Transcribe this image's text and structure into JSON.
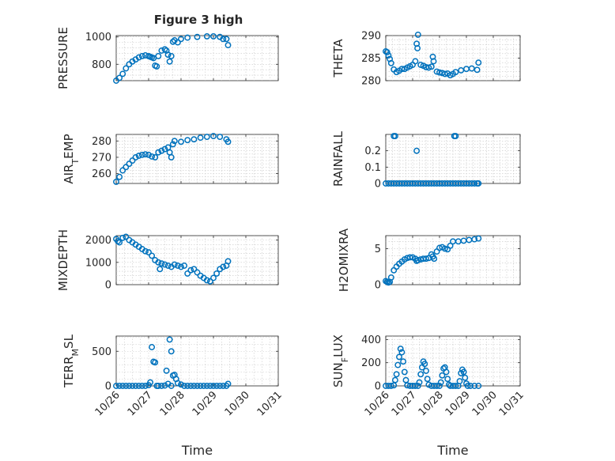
{
  "figure": {
    "title": "Figure 3 high"
  },
  "chart_data": [
    {
      "type": "scatter",
      "ylabel_main": "PRESSURE",
      "ylabel_sub": "",
      "xlabel": "",
      "yticks": [
        800,
        1000
      ],
      "ylim": [
        680,
        1010
      ],
      "minor_grid": true,
      "points": [
        [
          0.0,
          680
        ],
        [
          0.1,
          700
        ],
        [
          0.2,
          730
        ],
        [
          0.3,
          770
        ],
        [
          0.4,
          800
        ],
        [
          0.5,
          820
        ],
        [
          0.6,
          835
        ],
        [
          0.7,
          850
        ],
        [
          0.8,
          860
        ],
        [
          0.9,
          865
        ],
        [
          1.0,
          860
        ],
        [
          1.05,
          855
        ],
        [
          1.1,
          850
        ],
        [
          1.15,
          845
        ],
        [
          1.2,
          790
        ],
        [
          1.25,
          785
        ],
        [
          1.3,
          860
        ],
        [
          1.4,
          900
        ],
        [
          1.5,
          910
        ],
        [
          1.55,
          900
        ],
        [
          1.6,
          870
        ],
        [
          1.65,
          820
        ],
        [
          1.7,
          860
        ],
        [
          1.75,
          965
        ],
        [
          1.8,
          975
        ],
        [
          1.9,
          960
        ],
        [
          2.0,
          985
        ],
        [
          2.2,
          995
        ],
        [
          2.5,
          1000
        ],
        [
          2.8,
          1005
        ],
        [
          3.0,
          1005
        ],
        [
          3.2,
          1000
        ],
        [
          3.3,
          985
        ],
        [
          3.4,
          985
        ],
        [
          3.45,
          940
        ]
      ]
    },
    {
      "type": "scatter",
      "ylabel_main": "THETA",
      "ylabel_sub": "",
      "xlabel": "",
      "yticks": [
        280,
        285,
        290
      ],
      "ylim": [
        280,
        290
      ],
      "minor_grid": true,
      "points": [
        [
          0.0,
          286.5
        ],
        [
          0.05,
          286.3
        ],
        [
          0.1,
          285.6
        ],
        [
          0.15,
          284.8
        ],
        [
          0.2,
          283.9
        ],
        [
          0.3,
          282.5
        ],
        [
          0.4,
          281.9
        ],
        [
          0.5,
          282.2
        ],
        [
          0.6,
          282.6
        ],
        [
          0.7,
          282.6
        ],
        [
          0.8,
          282.9
        ],
        [
          0.9,
          283.2
        ],
        [
          1.0,
          283.5
        ],
        [
          1.1,
          284.3
        ],
        [
          1.15,
          288.2
        ],
        [
          1.18,
          287.2
        ],
        [
          1.2,
          290.2
        ],
        [
          1.3,
          283.5
        ],
        [
          1.4,
          283.3
        ],
        [
          1.5,
          283.0
        ],
        [
          1.6,
          282.9
        ],
        [
          1.7,
          283.1
        ],
        [
          1.75,
          285.3
        ],
        [
          1.78,
          284.3
        ],
        [
          1.9,
          282.0
        ],
        [
          2.0,
          281.8
        ],
        [
          2.1,
          281.7
        ],
        [
          2.2,
          281.5
        ],
        [
          2.3,
          281.6
        ],
        [
          2.4,
          281.2
        ],
        [
          2.5,
          281.5
        ],
        [
          2.6,
          281.9
        ],
        [
          2.8,
          282.3
        ],
        [
          3.0,
          282.6
        ],
        [
          3.2,
          282.7
        ],
        [
          3.4,
          282.4
        ],
        [
          3.45,
          284.0
        ]
      ]
    },
    {
      "type": "scatter",
      "ylabel_main": "AIR",
      "ylabel_sub": "T",
      "ylabel_tail": "EMP",
      "xlabel": "",
      "yticks": [
        260,
        270,
        280
      ],
      "ylim": [
        254,
        284
      ],
      "minor_grid": true,
      "points": [
        [
          0.0,
          255
        ],
        [
          0.1,
          258
        ],
        [
          0.2,
          262
        ],
        [
          0.3,
          264
        ],
        [
          0.4,
          266
        ],
        [
          0.5,
          268
        ],
        [
          0.6,
          270
        ],
        [
          0.7,
          271
        ],
        [
          0.8,
          271.5
        ],
        [
          0.9,
          271.8
        ],
        [
          1.0,
          271.5
        ],
        [
          1.1,
          270.5
        ],
        [
          1.2,
          270
        ],
        [
          1.3,
          273
        ],
        [
          1.4,
          274
        ],
        [
          1.5,
          275
        ],
        [
          1.6,
          276
        ],
        [
          1.65,
          273
        ],
        [
          1.7,
          270
        ],
        [
          1.75,
          278
        ],
        [
          1.8,
          280
        ],
        [
          2.0,
          279.5
        ],
        [
          2.2,
          280.5
        ],
        [
          2.4,
          281
        ],
        [
          2.6,
          282
        ],
        [
          2.8,
          282.5
        ],
        [
          3.0,
          283
        ],
        [
          3.2,
          282.5
        ],
        [
          3.4,
          281
        ],
        [
          3.45,
          279.5
        ]
      ]
    },
    {
      "type": "scatter",
      "ylabel_main": "RAINFALL",
      "ylabel_sub": "",
      "xlabel": "",
      "yticks": [
        0,
        0.1,
        0.2
      ],
      "ylim": [
        0,
        0.3
      ],
      "minor_grid": true,
      "points": [
        [
          0.0,
          0
        ],
        [
          0.1,
          0
        ],
        [
          0.2,
          0
        ],
        [
          0.3,
          0
        ],
        [
          0.4,
          0
        ],
        [
          0.5,
          0
        ],
        [
          0.6,
          0
        ],
        [
          0.7,
          0
        ],
        [
          0.8,
          0
        ],
        [
          0.9,
          0
        ],
        [
          1.0,
          0
        ],
        [
          1.1,
          0
        ],
        [
          1.2,
          0
        ],
        [
          1.3,
          0
        ],
        [
          1.4,
          0
        ],
        [
          1.5,
          0
        ],
        [
          1.6,
          0
        ],
        [
          1.7,
          0
        ],
        [
          1.8,
          0
        ],
        [
          1.9,
          0
        ],
        [
          2.0,
          0
        ],
        [
          2.1,
          0
        ],
        [
          2.2,
          0
        ],
        [
          2.3,
          0
        ],
        [
          2.4,
          0
        ],
        [
          2.5,
          0
        ],
        [
          2.6,
          0
        ],
        [
          2.7,
          0
        ],
        [
          2.8,
          0
        ],
        [
          2.9,
          0
        ],
        [
          3.0,
          0
        ],
        [
          3.1,
          0
        ],
        [
          3.2,
          0
        ],
        [
          3.3,
          0
        ],
        [
          3.4,
          0
        ],
        [
          3.45,
          0
        ],
        [
          0.3,
          0.29
        ],
        [
          0.35,
          0.29
        ],
        [
          1.15,
          0.2
        ],
        [
          2.55,
          0.29
        ],
        [
          2.6,
          0.29
        ]
      ]
    },
    {
      "type": "scatter",
      "ylabel_main": "MIXDEPTH",
      "ylabel_sub": "",
      "xlabel": "",
      "yticks": [
        0,
        1000,
        2000
      ],
      "ylim": [
        0,
        2200
      ],
      "minor_grid": true,
      "points": [
        [
          0.0,
          2050
        ],
        [
          0.05,
          1950
        ],
        [
          0.1,
          1900
        ],
        [
          0.2,
          2100
        ],
        [
          0.3,
          2150
        ],
        [
          0.4,
          2000
        ],
        [
          0.5,
          1900
        ],
        [
          0.6,
          1800
        ],
        [
          0.7,
          1700
        ],
        [
          0.8,
          1600
        ],
        [
          0.9,
          1500
        ],
        [
          1.0,
          1450
        ],
        [
          1.1,
          1300
        ],
        [
          1.2,
          1100
        ],
        [
          1.3,
          1000
        ],
        [
          1.35,
          700
        ],
        [
          1.4,
          950
        ],
        [
          1.5,
          900
        ],
        [
          1.6,
          850
        ],
        [
          1.7,
          800
        ],
        [
          1.8,
          900
        ],
        [
          1.9,
          850
        ],
        [
          2.0,
          800
        ],
        [
          2.1,
          850
        ],
        [
          2.2,
          500
        ],
        [
          2.3,
          650
        ],
        [
          2.4,
          700
        ],
        [
          2.5,
          550
        ],
        [
          2.6,
          400
        ],
        [
          2.7,
          300
        ],
        [
          2.8,
          200
        ],
        [
          2.9,
          150
        ],
        [
          3.0,
          300
        ],
        [
          3.1,
          500
        ],
        [
          3.2,
          700
        ],
        [
          3.3,
          800
        ],
        [
          3.4,
          850
        ],
        [
          3.45,
          1050
        ]
      ]
    },
    {
      "type": "scatter",
      "ylabel_main": "H2OMIXRA",
      "ylabel_sub": "",
      "xlabel": "",
      "yticks": [
        0,
        5
      ],
      "ylim": [
        0,
        6.8
      ],
      "minor_grid": true,
      "points": [
        [
          0.0,
          0.5
        ],
        [
          0.05,
          0.4
        ],
        [
          0.1,
          0.3
        ],
        [
          0.15,
          0.4
        ],
        [
          0.2,
          1.0
        ],
        [
          0.3,
          2.0
        ],
        [
          0.4,
          2.5
        ],
        [
          0.5,
          2.9
        ],
        [
          0.6,
          3.2
        ],
        [
          0.7,
          3.5
        ],
        [
          0.8,
          3.7
        ],
        [
          0.9,
          3.8
        ],
        [
          1.0,
          3.8
        ],
        [
          1.1,
          3.6
        ],
        [
          1.15,
          3.3
        ],
        [
          1.2,
          3.4
        ],
        [
          1.3,
          3.5
        ],
        [
          1.4,
          3.6
        ],
        [
          1.5,
          3.6
        ],
        [
          1.6,
          3.7
        ],
        [
          1.7,
          4.2
        ],
        [
          1.75,
          3.9
        ],
        [
          1.8,
          3.6
        ],
        [
          1.9,
          4.6
        ],
        [
          2.0,
          5.1
        ],
        [
          2.1,
          5.2
        ],
        [
          2.2,
          5.0
        ],
        [
          2.3,
          4.9
        ],
        [
          2.4,
          5.4
        ],
        [
          2.5,
          6.0
        ],
        [
          2.7,
          6.0
        ],
        [
          2.9,
          6.1
        ],
        [
          3.1,
          6.2
        ],
        [
          3.3,
          6.3
        ],
        [
          3.45,
          6.4
        ]
      ]
    },
    {
      "type": "scatter",
      "ylabel_main": "TERR",
      "ylabel_sub": "M",
      "ylabel_tail": "SL",
      "xlabel": "Time",
      "yticks": [
        0,
        500
      ],
      "ylim": [
        0,
        720
      ],
      "minor_grid": true,
      "points": [
        [
          0.0,
          0
        ],
        [
          0.1,
          0
        ],
        [
          0.2,
          0
        ],
        [
          0.3,
          0
        ],
        [
          0.4,
          0
        ],
        [
          0.5,
          0
        ],
        [
          0.6,
          0
        ],
        [
          0.7,
          0
        ],
        [
          0.8,
          0
        ],
        [
          0.9,
          0
        ],
        [
          1.0,
          10
        ],
        [
          1.05,
          50
        ],
        [
          1.1,
          560
        ],
        [
          1.15,
          350
        ],
        [
          1.2,
          340
        ],
        [
          1.25,
          0
        ],
        [
          1.3,
          0
        ],
        [
          1.4,
          0
        ],
        [
          1.5,
          5
        ],
        [
          1.6,
          30
        ],
        [
          1.65,
          670
        ],
        [
          1.7,
          500
        ],
        [
          1.75,
          150
        ],
        [
          1.8,
          160
        ],
        [
          1.85,
          100
        ],
        [
          1.9,
          40
        ],
        [
          2.0,
          20
        ],
        [
          2.1,
          0
        ],
        [
          2.2,
          0
        ],
        [
          2.3,
          0
        ],
        [
          2.4,
          0
        ],
        [
          2.5,
          0
        ],
        [
          2.6,
          0
        ],
        [
          2.7,
          0
        ],
        [
          2.8,
          0
        ],
        [
          2.9,
          0
        ],
        [
          3.0,
          0
        ],
        [
          3.1,
          0
        ],
        [
          3.2,
          0
        ],
        [
          3.3,
          0
        ],
        [
          3.4,
          0
        ],
        [
          3.45,
          30
        ],
        [
          1.55,
          220
        ],
        [
          1.7,
          0
        ]
      ]
    },
    {
      "type": "scatter",
      "ylabel_main": "SUN",
      "ylabel_sub": "F",
      "ylabel_tail": "LUX",
      "xlabel": "Time",
      "yticks": [
        0,
        200,
        400
      ],
      "ylim": [
        0,
        430
      ],
      "minor_grid": true,
      "points": [
        [
          0.0,
          0
        ],
        [
          0.1,
          0
        ],
        [
          0.2,
          0
        ],
        [
          0.3,
          5
        ],
        [
          0.35,
          50
        ],
        [
          0.4,
          100
        ],
        [
          0.45,
          180
        ],
        [
          0.5,
          250
        ],
        [
          0.55,
          320
        ],
        [
          0.6,
          290
        ],
        [
          0.65,
          210
        ],
        [
          0.7,
          120
        ],
        [
          0.75,
          50
        ],
        [
          0.8,
          5
        ],
        [
          0.9,
          0
        ],
        [
          1.0,
          0
        ],
        [
          1.1,
          0
        ],
        [
          1.2,
          0
        ],
        [
          1.25,
          30
        ],
        [
          1.3,
          100
        ],
        [
          1.35,
          160
        ],
        [
          1.4,
          210
        ],
        [
          1.45,
          190
        ],
        [
          1.5,
          130
        ],
        [
          1.55,
          60
        ],
        [
          1.6,
          10
        ],
        [
          1.7,
          0
        ],
        [
          1.8,
          0
        ],
        [
          1.9,
          0
        ],
        [
          2.0,
          0
        ],
        [
          2.05,
          30
        ],
        [
          2.1,
          90
        ],
        [
          2.15,
          150
        ],
        [
          2.2,
          160
        ],
        [
          2.25,
          120
        ],
        [
          2.3,
          60
        ],
        [
          2.35,
          10
        ],
        [
          2.4,
          0
        ],
        [
          2.5,
          0
        ],
        [
          2.6,
          0
        ],
        [
          2.7,
          0
        ],
        [
          2.75,
          40
        ],
        [
          2.8,
          110
        ],
        [
          2.85,
          140
        ],
        [
          2.9,
          120
        ],
        [
          2.95,
          70
        ],
        [
          3.0,
          20
        ],
        [
          3.05,
          0
        ],
        [
          3.15,
          0
        ],
        [
          3.3,
          0
        ],
        [
          3.45,
          0
        ]
      ]
    }
  ],
  "x_axis": {
    "tick_labels": [
      "10/26",
      "10/27",
      "10/28",
      "10/29",
      "10/30",
      "10/31"
    ],
    "xlim": [
      0,
      5
    ]
  }
}
